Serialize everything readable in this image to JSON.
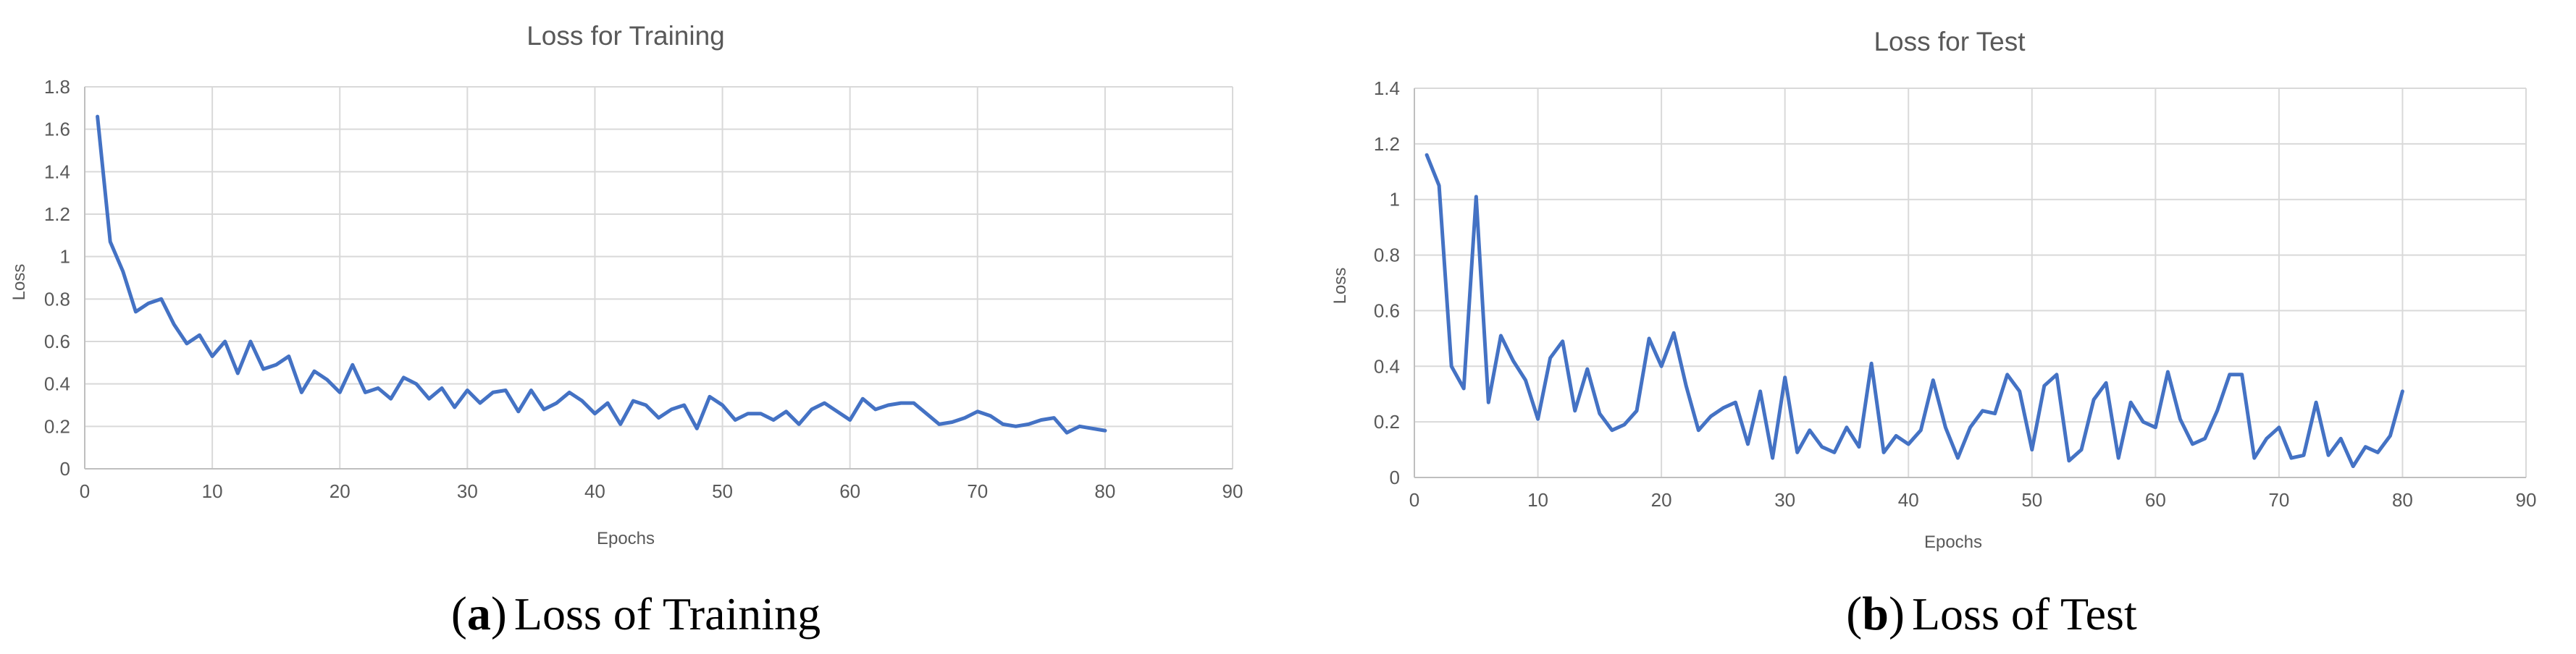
{
  "colors": {
    "series": "#4472c4",
    "grid": "#d9d9d9",
    "text": "#595959"
  },
  "captions": [
    {
      "label": "a",
      "text": "Loss of Training"
    },
    {
      "label": "b",
      "text": "Loss of Test"
    }
  ],
  "chart_data": [
    {
      "type": "line",
      "title": "Loss for Training",
      "xlabel": "Epochs",
      "ylabel": "Loss",
      "xlim": [
        0,
        90
      ],
      "ylim": [
        0,
        1.8
      ],
      "xticks": [
        "0",
        "10",
        "20",
        "30",
        "40",
        "50",
        "60",
        "70",
        "80",
        "90"
      ],
      "yticks": [
        "0",
        "0.2",
        "0.4",
        "0.6",
        "0.8",
        "1",
        "1.2",
        "1.4",
        "1.6",
        "1.8"
      ],
      "grid": true,
      "x": [
        1,
        2,
        3,
        4,
        5,
        6,
        7,
        8,
        9,
        10,
        11,
        12,
        13,
        14,
        15,
        16,
        17,
        18,
        19,
        20,
        21,
        22,
        23,
        24,
        25,
        26,
        27,
        28,
        29,
        30,
        31,
        32,
        33,
        34,
        35,
        36,
        37,
        38,
        39,
        40,
        41,
        42,
        43,
        44,
        45,
        46,
        47,
        48,
        49,
        50,
        51,
        52,
        53,
        54,
        55,
        56,
        57,
        58,
        59,
        60,
        61,
        62,
        63,
        64,
        65,
        66,
        67,
        68,
        69,
        70,
        71,
        72,
        73,
        74,
        75,
        76,
        77,
        78,
        79,
        80
      ],
      "y": [
        1.66,
        1.07,
        0.93,
        0.74,
        0.78,
        0.8,
        0.68,
        0.59,
        0.63,
        0.53,
        0.6,
        0.45,
        0.6,
        0.47,
        0.49,
        0.53,
        0.36,
        0.46,
        0.42,
        0.36,
        0.49,
        0.36,
        0.38,
        0.33,
        0.43,
        0.4,
        0.33,
        0.38,
        0.29,
        0.37,
        0.31,
        0.36,
        0.37,
        0.27,
        0.37,
        0.28,
        0.31,
        0.36,
        0.32,
        0.26,
        0.31,
        0.21,
        0.32,
        0.3,
        0.24,
        0.28,
        0.3,
        0.19,
        0.34,
        0.3,
        0.23,
        0.26,
        0.26,
        0.23,
        0.27,
        0.21,
        0.28,
        0.31,
        0.27,
        0.23,
        0.33,
        0.28,
        0.3,
        0.31,
        0.31,
        0.26,
        0.21,
        0.22,
        0.24,
        0.27,
        0.25,
        0.21,
        0.2,
        0.21,
        0.23,
        0.24,
        0.17,
        0.2,
        0.19,
        0.18
      ]
    },
    {
      "type": "line",
      "title": "Loss for Test",
      "xlabel": "Epochs",
      "ylabel": "Loss",
      "xlim": [
        0,
        90
      ],
      "ylim": [
        0,
        1.4
      ],
      "xticks": [
        "0",
        "10",
        "20",
        "30",
        "40",
        "50",
        "60",
        "70",
        "80",
        "90"
      ],
      "yticks": [
        "0",
        "0.2",
        "0.4",
        "0.6",
        "0.8",
        "1",
        "1.2",
        "1.4"
      ],
      "grid": true,
      "x": [
        1,
        2,
        3,
        4,
        5,
        6,
        7,
        8,
        9,
        10,
        11,
        12,
        13,
        14,
        15,
        16,
        17,
        18,
        19,
        20,
        21,
        22,
        23,
        24,
        25,
        26,
        27,
        28,
        29,
        30,
        31,
        32,
        33,
        34,
        35,
        36,
        37,
        38,
        39,
        40,
        41,
        42,
        43,
        44,
        45,
        46,
        47,
        48,
        49,
        50,
        51,
        52,
        53,
        54,
        55,
        56,
        57,
        58,
        59,
        60,
        61,
        62,
        63,
        64,
        65,
        66,
        67,
        68,
        69,
        70,
        71,
        72,
        73,
        74,
        75,
        76,
        77,
        78,
        79,
        80
      ],
      "y": [
        1.16,
        1.05,
        0.4,
        0.32,
        1.01,
        0.27,
        0.51,
        0.42,
        0.35,
        0.21,
        0.43,
        0.49,
        0.24,
        0.39,
        0.23,
        0.17,
        0.19,
        0.24,
        0.5,
        0.4,
        0.52,
        0.33,
        0.17,
        0.22,
        0.25,
        0.27,
        0.12,
        0.31,
        0.07,
        0.36,
        0.09,
        0.17,
        0.11,
        0.09,
        0.18,
        0.11,
        0.41,
        0.09,
        0.15,
        0.12,
        0.17,
        0.35,
        0.18,
        0.07,
        0.18,
        0.24,
        0.23,
        0.37,
        0.31,
        0.1,
        0.33,
        0.37,
        0.06,
        0.1,
        0.28,
        0.34,
        0.07,
        0.27,
        0.2,
        0.18,
        0.38,
        0.21,
        0.12,
        0.14,
        0.24,
        0.37,
        0.37,
        0.07,
        0.14,
        0.18,
        0.07,
        0.08,
        0.27,
        0.08,
        0.14,
        0.04,
        0.11,
        0.09,
        0.15,
        0.31
      ]
    }
  ]
}
